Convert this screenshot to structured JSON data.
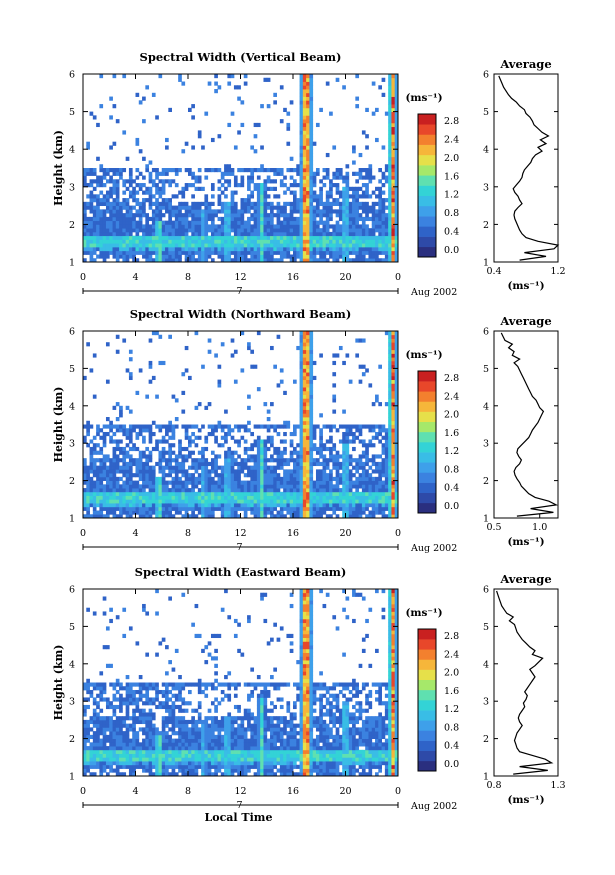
{
  "colormap": [
    "#2a2f7f",
    "#2e4aa8",
    "#2f63c8",
    "#3b82e0",
    "#3ea0ea",
    "#39bde6",
    "#33d3d6",
    "#5fe0b0",
    "#a6e86a",
    "#e6e04a",
    "#f6b63a",
    "#f3802e",
    "#e8472a",
    "#c92020"
  ],
  "chart_data": [
    {
      "type": "heatmap",
      "title": "Spectral Width (Vertical Beam)",
      "ylabel": "Height (km)",
      "xlabel": "",
      "date_label": "Aug 2002",
      "day_label": "7",
      "x_ticks": [
        "0",
        "4",
        "8",
        "12",
        "16",
        "20",
        "0"
      ],
      "y_ticks": [
        "1",
        "2",
        "3",
        "4",
        "5",
        "6"
      ],
      "xlim": [
        0,
        24
      ],
      "ylim": [
        1,
        6
      ],
      "colorbar": {
        "unit": "(ms⁻¹)",
        "ticks": [
          "0.0",
          "0.4",
          "0.8",
          "1.2",
          "1.6",
          "2.0",
          "2.4",
          "2.8"
        ],
        "range": [
          0,
          3.0
        ]
      },
      "profile": {
        "title": "Average",
        "xlabel": "(ms⁻¹)",
        "x_ticks": [
          "0.4",
          "1.2"
        ],
        "xlim": [
          0.4,
          1.2
        ],
        "y_ticks": [
          "1",
          "2",
          "3",
          "4",
          "5",
          "6"
        ],
        "heights": [
          1.05,
          1.15,
          1.25,
          1.35,
          1.45,
          1.55,
          1.65,
          1.75,
          1.85,
          1.95,
          2.05,
          2.15,
          2.25,
          2.35,
          2.45,
          2.55,
          2.65,
          2.75,
          2.85,
          2.95,
          3.05,
          3.15,
          3.25,
          3.35,
          3.45,
          3.55,
          3.65,
          3.75,
          3.85,
          3.95,
          4.05,
          4.15,
          4.25,
          4.35,
          4.45,
          4.55,
          4.65,
          4.75,
          4.85,
          4.95,
          5.05,
          5.15,
          5.25,
          5.35,
          5.45,
          5.55,
          5.65,
          5.75,
          5.85,
          5.95
        ],
        "values": [
          0.72,
          1.05,
          0.78,
          1.15,
          1.2,
          0.95,
          0.8,
          0.75,
          0.72,
          0.7,
          0.68,
          0.66,
          0.65,
          0.66,
          0.7,
          0.75,
          0.72,
          0.7,
          0.66,
          0.64,
          0.68,
          0.72,
          0.75,
          0.76,
          0.78,
          0.82,
          0.86,
          0.88,
          0.92,
          1.0,
          0.95,
          1.05,
          0.98,
          1.08,
          1.0,
          0.95,
          0.9,
          0.88,
          0.85,
          0.8,
          0.78,
          0.72,
          0.68,
          0.62,
          0.58,
          0.55,
          0.52,
          0.5,
          0.48,
          0.46
        ]
      }
    },
    {
      "type": "heatmap",
      "title": "Spectral Width (Northward Beam)",
      "ylabel": "Height (km)",
      "xlabel": "",
      "date_label": "Aug 2002",
      "day_label": "7",
      "x_ticks": [
        "0",
        "4",
        "8",
        "12",
        "16",
        "20",
        "0"
      ],
      "y_ticks": [
        "1",
        "2",
        "3",
        "4",
        "5",
        "6"
      ],
      "xlim": [
        0,
        24
      ],
      "ylim": [
        1,
        6
      ],
      "colorbar": {
        "unit": "(ms⁻¹)",
        "ticks": [
          "0.0",
          "0.4",
          "0.8",
          "1.2",
          "1.6",
          "2.0",
          "2.4",
          "2.8"
        ],
        "range": [
          0,
          3.0
        ]
      },
      "profile": {
        "title": "Average",
        "xlabel": "(ms⁻¹)",
        "x_ticks": [
          "0.5",
          "1.0"
        ],
        "xlim": [
          0.5,
          1.2
        ],
        "y_ticks": [
          "1",
          "2",
          "3",
          "4",
          "5",
          "6"
        ],
        "heights": [
          1.05,
          1.15,
          1.25,
          1.35,
          1.45,
          1.55,
          1.65,
          1.75,
          1.85,
          1.95,
          2.05,
          2.15,
          2.25,
          2.35,
          2.45,
          2.55,
          2.65,
          2.75,
          2.85,
          2.95,
          3.05,
          3.15,
          3.25,
          3.35,
          3.45,
          3.55,
          3.65,
          3.75,
          3.85,
          3.95,
          4.05,
          4.15,
          4.25,
          4.35,
          4.45,
          4.55,
          4.65,
          4.75,
          4.85,
          4.95,
          5.05,
          5.15,
          5.25,
          5.35,
          5.45,
          5.55,
          5.65,
          5.75,
          5.85,
          5.95
        ],
        "values": [
          0.75,
          1.15,
          0.9,
          1.18,
          1.1,
          0.95,
          0.88,
          0.84,
          0.8,
          0.78,
          0.75,
          0.73,
          0.72,
          0.74,
          0.78,
          0.8,
          0.77,
          0.75,
          0.76,
          0.8,
          0.84,
          0.88,
          0.9,
          0.92,
          0.95,
          0.98,
          1.0,
          1.02,
          1.04,
          1.0,
          0.98,
          0.96,
          0.92,
          0.9,
          0.88,
          0.86,
          0.84,
          0.82,
          0.8,
          0.78,
          0.76,
          0.72,
          0.78,
          0.7,
          0.72,
          0.66,
          0.7,
          0.62,
          0.6,
          0.58
        ]
      }
    },
    {
      "type": "heatmap",
      "title": "Spectral Width (Eastward Beam)",
      "ylabel": "Height (km)",
      "xlabel": "Local Time",
      "date_label": "Aug 2002",
      "day_label": "7",
      "x_ticks": [
        "0",
        "4",
        "8",
        "12",
        "16",
        "20",
        "0"
      ],
      "y_ticks": [
        "1",
        "2",
        "3",
        "4",
        "5",
        "6"
      ],
      "xlim": [
        0,
        24
      ],
      "ylim": [
        1,
        6
      ],
      "colorbar": {
        "unit": "(ms⁻¹)",
        "ticks": [
          "0.0",
          "0.4",
          "0.8",
          "1.2",
          "1.6",
          "2.0",
          "2.4",
          "2.8"
        ],
        "range": [
          0,
          3.0
        ]
      },
      "profile": {
        "title": "Average",
        "xlabel": "(ms⁻¹)",
        "x_ticks": [
          "0.8",
          "1.3"
        ],
        "xlim": [
          0.8,
          1.3
        ],
        "y_ticks": [
          "1",
          "2",
          "3",
          "4",
          "5",
          "6"
        ],
        "heights": [
          1.05,
          1.15,
          1.25,
          1.35,
          1.45,
          1.55,
          1.65,
          1.75,
          1.85,
          1.95,
          2.05,
          2.15,
          2.25,
          2.35,
          2.45,
          2.55,
          2.65,
          2.75,
          2.85,
          2.95,
          3.05,
          3.15,
          3.25,
          3.35,
          3.45,
          3.55,
          3.65,
          3.75,
          3.85,
          3.95,
          4.05,
          4.15,
          4.25,
          4.35,
          4.45,
          4.55,
          4.65,
          4.75,
          4.85,
          4.95,
          5.05,
          5.15,
          5.25,
          5.35,
          5.45,
          5.55,
          5.65,
          5.75,
          5.85,
          5.95
        ],
        "values": [
          0.95,
          1.22,
          1.0,
          1.25,
          1.2,
          1.1,
          1.0,
          0.98,
          0.97,
          0.96,
          0.97,
          0.98,
          1.0,
          1.02,
          1.0,
          0.99,
          1.0,
          1.02,
          1.04,
          1.03,
          1.05,
          1.06,
          1.04,
          1.06,
          1.08,
          1.1,
          1.12,
          1.1,
          1.08,
          1.12,
          1.15,
          1.18,
          1.1,
          1.12,
          1.08,
          1.05,
          1.02,
          1.0,
          0.98,
          0.97,
          0.96,
          0.92,
          0.95,
          0.9,
          0.88,
          0.86,
          0.85,
          0.84,
          0.83,
          0.82
        ]
      }
    }
  ]
}
